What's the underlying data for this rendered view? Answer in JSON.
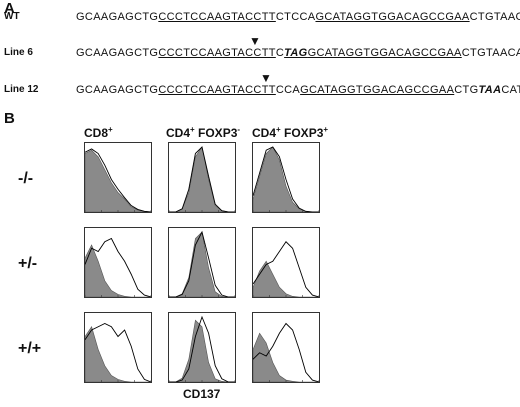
{
  "panelA": {
    "label": "A",
    "rows": [
      {
        "label": "WT",
        "segments": [
          {
            "text": "GCAAGAGCTG",
            "style": ""
          },
          {
            "text": "CCCTCCAAGTACCTT",
            "style": "ul"
          },
          {
            "text": "CTCCA",
            "style": ""
          },
          {
            "text": "GCATAGGTGGACAGCCGAA",
            "style": "ul"
          },
          {
            "text": "CTGTAACATC",
            "style": ""
          }
        ]
      },
      {
        "label": "Line 6",
        "segments": [
          {
            "text": "GCAAGAGCTG",
            "style": ""
          },
          {
            "text": "CCCTCCAAGTACCTT",
            "style": "ul"
          },
          {
            "text": "C",
            "style": ""
          },
          {
            "text": "TAG",
            "style": "mut ul"
          },
          {
            "text": "GCATAGGTGGACAGCCGAA",
            "style": "ul"
          },
          {
            "text": "CTGTAACATC",
            "style": ""
          }
        ]
      },
      {
        "label": "Line 12",
        "segments": [
          {
            "text": "GCAAGAGCTG",
            "style": ""
          },
          {
            "text": "CCCTCCAAGTACCTT",
            "style": "ul"
          },
          {
            "text": "CCA",
            "style": ""
          },
          {
            "text": "GCATAGGTGGACAGCCGAA",
            "style": "ul"
          },
          {
            "text": "CTG",
            "style": ""
          },
          {
            "text": "TAA",
            "style": "mut"
          },
          {
            "text": "CATC",
            "style": ""
          }
        ]
      }
    ],
    "arrow_glyph": "▼"
  },
  "panelB": {
    "label": "B",
    "columns": [
      {
        "main": "CD8",
        "sup": "+"
      },
      {
        "main": "CD4",
        "sup": "+",
        "main2": " FOXP3",
        "sup2": "-"
      },
      {
        "main": "CD4",
        "sup": "+",
        "main2": " FOXP3",
        "sup2": "+"
      }
    ],
    "rows": [
      "-/-",
      "+/-",
      "+/+"
    ],
    "x_axis_title": "CD137",
    "colors": {
      "filled": "#8a8a8a",
      "outline": "#000000"
    }
  },
  "chart_data": {
    "type": "area",
    "x_scale": "log",
    "xlim": [
      0,
      4
    ],
    "x": [
      0.0,
      0.4,
      0.8,
      1.2,
      1.6,
      2.0,
      2.4,
      2.8,
      3.2,
      3.6,
      4.0
    ],
    "panels": [
      {
        "row": "-/-",
        "column": "CD8+",
        "filled": [
          0.9,
          0.95,
          0.85,
          0.65,
          0.45,
          0.3,
          0.2,
          0.08,
          0.03,
          0.01,
          0
        ],
        "outline": [
          0.92,
          0.97,
          0.9,
          0.72,
          0.5,
          0.35,
          0.22,
          0.1,
          0.04,
          0.01,
          0
        ]
      },
      {
        "row": "-/-",
        "column": "CD4+ FOXP3-",
        "filled": [
          0,
          0,
          0.05,
          0.3,
          0.85,
          1.0,
          0.5,
          0.1,
          0.02,
          0,
          0
        ],
        "outline": [
          0,
          0,
          0.05,
          0.35,
          0.9,
          1.0,
          0.55,
          0.12,
          0.02,
          0,
          0
        ]
      },
      {
        "row": "-/-",
        "column": "CD4+ FOXP3+",
        "filled": [
          0.2,
          0.55,
          0.9,
          1.0,
          0.8,
          0.4,
          0.15,
          0.05,
          0.01,
          0,
          0
        ],
        "outline": [
          0.25,
          0.6,
          0.95,
          1.0,
          0.85,
          0.5,
          0.2,
          0.06,
          0.01,
          0,
          0
        ]
      },
      {
        "row": "+/-",
        "column": "CD8+",
        "filled": [
          0.6,
          0.8,
          0.55,
          0.25,
          0.1,
          0.04,
          0.01,
          0,
          0,
          0,
          0
        ],
        "outline": [
          0.5,
          0.75,
          0.7,
          0.85,
          0.9,
          0.7,
          0.55,
          0.35,
          0.12,
          0.03,
          0
        ]
      },
      {
        "row": "+/-",
        "column": "CD4+ FOXP3-",
        "filled": [
          0,
          0,
          0.05,
          0.3,
          0.9,
          1.0,
          0.45,
          0.08,
          0.01,
          0,
          0
        ],
        "outline": [
          0,
          0,
          0.04,
          0.25,
          0.8,
          1.0,
          0.6,
          0.18,
          0.03,
          0,
          0
        ]
      },
      {
        "row": "+/-",
        "column": "CD4+ FOXP3+",
        "filled": [
          0.15,
          0.4,
          0.55,
          0.35,
          0.15,
          0.05,
          0.01,
          0,
          0,
          0,
          0
        ],
        "outline": [
          0.2,
          0.35,
          0.5,
          0.55,
          0.7,
          0.85,
          0.75,
          0.45,
          0.15,
          0.03,
          0
        ]
      },
      {
        "row": "+/+",
        "column": "CD8+",
        "filled": [
          0.7,
          0.85,
          0.5,
          0.25,
          0.1,
          0.04,
          0.01,
          0,
          0,
          0,
          0
        ],
        "outline": [
          0.65,
          0.8,
          0.85,
          0.9,
          0.85,
          0.7,
          0.8,
          0.55,
          0.2,
          0.04,
          0
        ]
      },
      {
        "row": "+/+",
        "column": "CD4+ FOXP3-",
        "filled": [
          0,
          0,
          0.06,
          0.35,
          0.95,
          0.85,
          0.3,
          0.05,
          0.01,
          0,
          0
        ],
        "outline": [
          0,
          0,
          0.03,
          0.2,
          0.7,
          1.0,
          0.75,
          0.25,
          0.05,
          0,
          0
        ]
      },
      {
        "row": "+/+",
        "column": "CD4+ FOXP3+",
        "filled": [
          0.5,
          0.75,
          0.6,
          0.3,
          0.1,
          0.03,
          0.01,
          0,
          0,
          0,
          0
        ],
        "outline": [
          0.35,
          0.45,
          0.4,
          0.55,
          0.75,
          0.9,
          0.8,
          0.5,
          0.15,
          0.03,
          0
        ]
      }
    ]
  }
}
